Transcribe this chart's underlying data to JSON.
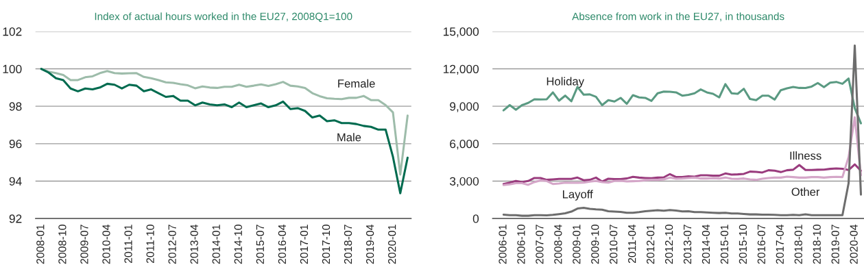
{
  "chart_data": [
    {
      "type": "line",
      "title": "Index of actual hours worked in the EU27, 2008Q1=100",
      "categories": [
        "2008-01",
        null,
        null,
        "2008-10",
        null,
        null,
        "2009-07",
        null,
        null,
        "2010-04",
        null,
        null,
        "2011-01",
        null,
        null,
        "2011-10",
        null,
        null,
        "2012-07",
        null,
        null,
        "2013-04",
        null,
        null,
        "2014-01",
        null,
        null,
        "2014-10",
        null,
        null,
        "2015-07",
        null,
        null,
        "2016-04",
        null,
        null,
        "2017-01",
        null,
        null,
        "2017-10",
        null,
        null,
        "2018-07",
        null,
        null,
        "2019-04",
        null,
        null,
        "2020-01",
        null,
        null
      ],
      "series": [
        {
          "name": "Female",
          "color": "#9dbcaa",
          "values": [
            100,
            99.85,
            99.77,
            99.67,
            99.4,
            99.4,
            99.55,
            99.6,
            99.77,
            99.88,
            99.77,
            99.75,
            99.76,
            99.77,
            99.57,
            99.5,
            99.4,
            99.28,
            99.25,
            99.18,
            99.12,
            98.96,
            99.06,
            99.0,
            98.98,
            99.04,
            99.04,
            99.15,
            99.04,
            99.1,
            99.17,
            99.09,
            99.18,
            99.3,
            99.1,
            99.06,
            98.98,
            98.7,
            98.54,
            98.43,
            98.4,
            98.38,
            98.45,
            98.45,
            98.55,
            98.33,
            98.33,
            98.06,
            97.67,
            94.35,
            97.5
          ]
        },
        {
          "name": "Male",
          "color": "#006b4f",
          "values": [
            100,
            99.8,
            99.5,
            99.4,
            98.95,
            98.8,
            98.95,
            98.9,
            99.0,
            99.2,
            99.15,
            98.95,
            99.15,
            99.1,
            98.8,
            98.9,
            98.7,
            98.5,
            98.55,
            98.3,
            98.3,
            98.05,
            98.2,
            98.1,
            98.05,
            98.1,
            97.95,
            98.2,
            97.95,
            98.05,
            98.15,
            97.95,
            98.05,
            98.25,
            97.85,
            97.9,
            97.75,
            97.4,
            97.5,
            97.2,
            97.25,
            97.1,
            97.1,
            97.05,
            96.95,
            96.9,
            96.75,
            96.75,
            95.3,
            93.35,
            95.25
          ]
        }
      ],
      "ylim": [
        92,
        102
      ],
      "yticks": [
        92,
        94,
        96,
        98,
        100,
        102
      ],
      "grid": "y",
      "legend": false
    },
    {
      "type": "line",
      "title": "Absence from work in the EU27, in thousands",
      "categories": [
        "2006-01",
        null,
        null,
        "2006-10",
        null,
        null,
        "2007-07",
        null,
        null,
        "2008-04",
        null,
        null,
        "2009-01",
        null,
        null,
        "2009-10",
        null,
        null,
        "2010-07",
        null,
        null,
        "2011-04",
        null,
        null,
        "2012-01",
        null,
        null,
        "2012-10",
        null,
        null,
        "2013-07",
        null,
        null,
        "2014-04",
        null,
        null,
        "2015-01",
        null,
        null,
        "2015-10",
        null,
        null,
        "2016-07",
        null,
        null,
        "2017-04",
        null,
        null,
        "2018-01",
        null,
        null,
        "2018-10",
        null,
        null,
        "2019-07",
        null,
        null,
        "2020-04",
        null
      ],
      "series": [
        {
          "name": "Holiday",
          "color": "#5a9a82",
          "values": [
            8670,
            9090,
            8720,
            9090,
            9270,
            9560,
            9540,
            9560,
            10110,
            9450,
            9850,
            9400,
            10550,
            9930,
            9950,
            9760,
            9090,
            9490,
            9380,
            9670,
            9200,
            9890,
            9710,
            9670,
            9430,
            10040,
            10180,
            10160,
            10110,
            9850,
            9910,
            10040,
            10350,
            10110,
            10000,
            9710,
            10770,
            10040,
            10000,
            10400,
            9580,
            9490,
            9850,
            9850,
            9540,
            10290,
            10440,
            10550,
            10470,
            10460,
            10580,
            10860,
            10530,
            10890,
            10950,
            10800,
            11220,
            8850,
            7630
          ]
        },
        {
          "name": "Illness",
          "color": "#9a3c7e",
          "values": [
            2770,
            2880,
            3010,
            2920,
            3010,
            3250,
            3250,
            3100,
            3140,
            3180,
            3180,
            3180,
            3280,
            3070,
            3100,
            3280,
            2960,
            3190,
            3160,
            3160,
            3210,
            3340,
            3280,
            3250,
            3230,
            3280,
            3300,
            3560,
            3320,
            3320,
            3380,
            3360,
            3470,
            3470,
            3430,
            3430,
            3610,
            3520,
            3540,
            3580,
            3760,
            3740,
            3690,
            3870,
            3830,
            3720,
            3870,
            3910,
            4290,
            3890,
            3890,
            3910,
            3920,
            3980,
            4010,
            3990,
            3890,
            4340,
            3830
          ]
        },
        {
          "name": "Other",
          "color": "#d4a6c8",
          "values": [
            2680,
            2740,
            2830,
            2830,
            2700,
            2920,
            3050,
            3010,
            2770,
            2810,
            2880,
            2860,
            2860,
            2880,
            2960,
            3010,
            2920,
            2880,
            3010,
            3030,
            2970,
            2990,
            3010,
            3070,
            3100,
            3100,
            3140,
            3280,
            3190,
            3210,
            3250,
            3280,
            3210,
            3210,
            3230,
            3210,
            3280,
            3190,
            3180,
            3210,
            3140,
            3100,
            3190,
            3250,
            3280,
            3280,
            3360,
            3320,
            3280,
            3280,
            3320,
            3320,
            3280,
            3320,
            3340,
            3320,
            4930,
            8120,
            3470
          ]
        },
        {
          "name": "Layoff",
          "color": "#6d6d6d",
          "values": [
            310,
            270,
            270,
            220,
            220,
            270,
            270,
            250,
            290,
            350,
            420,
            550,
            800,
            860,
            770,
            730,
            710,
            580,
            550,
            530,
            460,
            460,
            510,
            580,
            620,
            660,
            620,
            680,
            640,
            570,
            580,
            510,
            510,
            490,
            460,
            440,
            460,
            400,
            400,
            360,
            330,
            330,
            310,
            310,
            290,
            270,
            270,
            290,
            270,
            330,
            270,
            270,
            270,
            270,
            270,
            270,
            2830,
            13870,
            1920
          ]
        }
      ],
      "ylim": [
        0,
        15000
      ],
      "yticks": [
        {
          "value": 0,
          "label": "0"
        },
        {
          "value": 3000,
          "label": "3,000"
        },
        {
          "value": 6000,
          "label": "6,000"
        },
        {
          "value": 9000,
          "label": "9,000"
        },
        {
          "value": 12000,
          "label": "12,000"
        },
        {
          "value": 15000,
          "label": "15,000"
        }
      ],
      "grid": "y",
      "legend": false
    }
  ]
}
